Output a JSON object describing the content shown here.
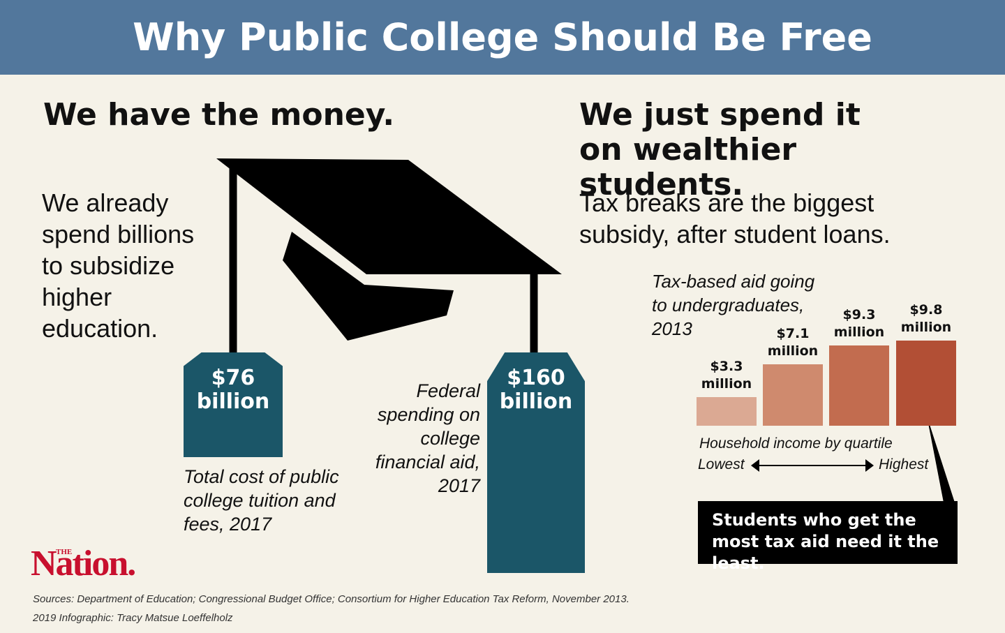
{
  "header": {
    "title": "Why Public College Should Be Free"
  },
  "left": {
    "heading": "We have the money.",
    "text": "We already spend billions to subsidize higher education."
  },
  "right": {
    "heading": "We just spend it on wealthier students.",
    "text": "Tax breaks are the biggest subsidy, after student loans."
  },
  "chart_data": [
    {
      "type": "bar",
      "categories": [
        "Total cost of public college tuition and fees, 2017",
        "Federal spending on college financial aid, 2017"
      ],
      "values": [
        76,
        160
      ],
      "value_labels": [
        "$76 billion",
        "$160 billion"
      ],
      "color": "#1b5668"
    },
    {
      "type": "bar",
      "title": "Tax-based aid going to undergraduates, 2013",
      "categories": [
        null,
        null,
        null,
        null
      ],
      "values": [
        3.3,
        7.1,
        9.3,
        9.8
      ],
      "value_labels": [
        "$3.3 million",
        "$7.1 million",
        "$9.3 million",
        "$9.8 million"
      ],
      "colors": [
        "#dba993",
        "#cf8a6e",
        "#c26c4f",
        "#b24f35"
      ],
      "x_label": "Household income by quartile",
      "x_low": "Lowest",
      "x_high": "Highest"
    }
  ],
  "callout": "Students who get the most tax aid need it the least.",
  "logo": {
    "small": "THE",
    "name": "Nation."
  },
  "footer": {
    "sources": "Sources: Department of Education; Congressional Budget Office; Consortium for Higher Education Tax Reform, November 2013.",
    "credit": "2019 Infographic: Tracy Matsue Loeffelholz"
  }
}
